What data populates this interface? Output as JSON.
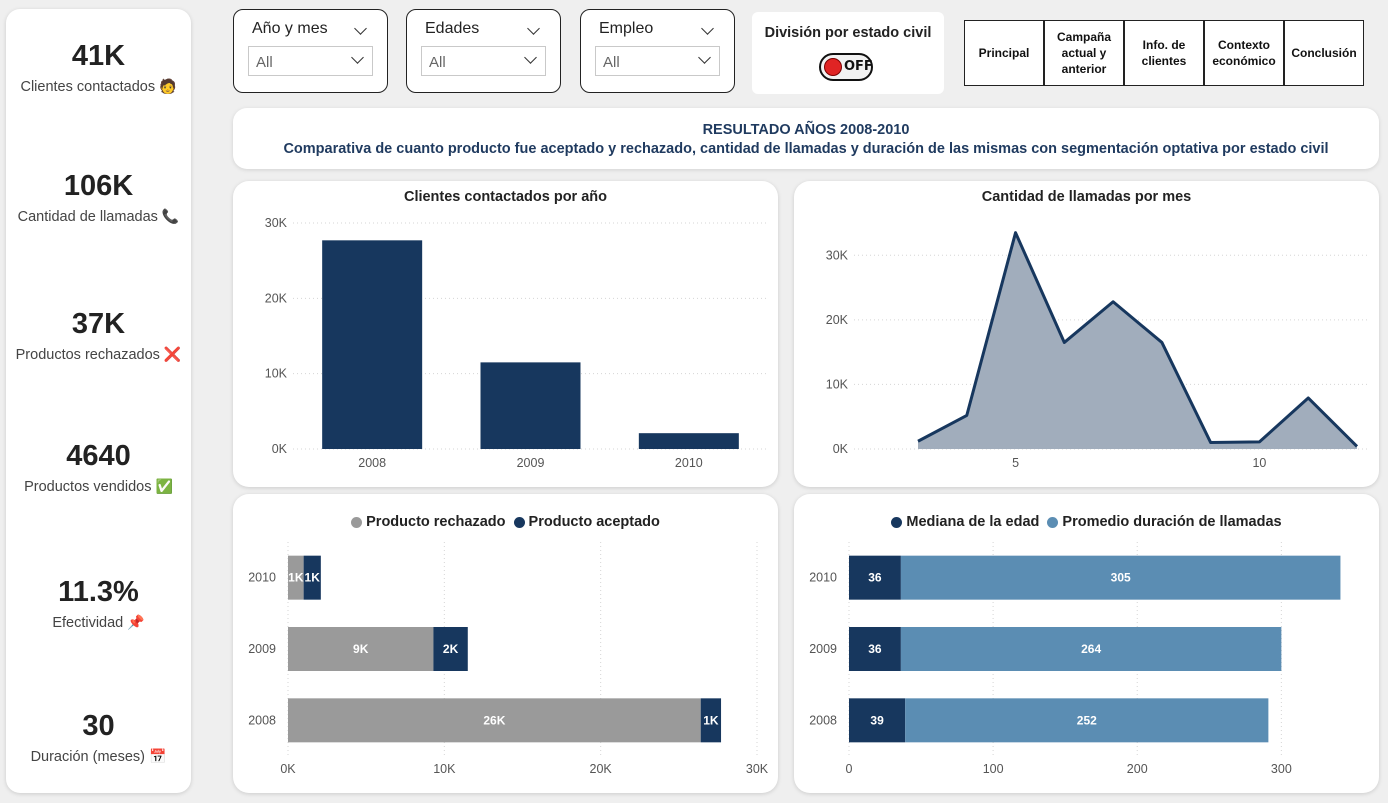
{
  "kpis": [
    {
      "value": "41K",
      "label": "Clientes contactados",
      "icon": "person-icon",
      "glyph": "🧑"
    },
    {
      "value": "106K",
      "label": "Cantidad de llamadas",
      "icon": "phone-icon",
      "glyph": "📞"
    },
    {
      "value": "37K",
      "label": "Productos rechazados",
      "icon": "cross-icon",
      "glyph": "❌"
    },
    {
      "value": "4640",
      "label": "Productos vendidos",
      "icon": "check-icon",
      "glyph": "✅"
    },
    {
      "value": "11.3%",
      "label": "Efectividad",
      "icon": "pin-icon",
      "glyph": "📌"
    },
    {
      "value": "30",
      "label": "Duración (meses)",
      "icon": "calendar-icon",
      "glyph": "📅"
    }
  ],
  "filters": [
    {
      "title": "Año y mes",
      "value": "All"
    },
    {
      "title": "Edades",
      "value": "All"
    },
    {
      "title": "Empleo",
      "value": "All"
    }
  ],
  "toggle": {
    "title": "División por estado civil",
    "state": "OFF",
    "on_color": "#e02424"
  },
  "nav": [
    "Principal",
    "Campaña actual y anterior",
    "Info. de clientes",
    "Contexto económico",
    "Conclusión"
  ],
  "banner": {
    "title": "RESULTADO AÑOS 2008-2010",
    "subtitle": "Comparativa de cuanto producto fue aceptado y rechazado, cantidad de llamadas y duración de las mismas con segmentación optativa por estado civil"
  },
  "colors": {
    "navy": "#17375e",
    "gray": "#9a9a9a",
    "steel": "#5b8db3",
    "area_fill": "#a1adbc"
  },
  "chart_data": [
    {
      "type": "bar",
      "title": "Clientes contactados por año",
      "categories": [
        "2008",
        "2009",
        "2010"
      ],
      "values": [
        27700,
        11500,
        2100
      ],
      "ylim": [
        0,
        30000
      ],
      "yticks": [
        0,
        10000,
        20000,
        30000
      ],
      "ytick_labels": [
        "0K",
        "10K",
        "20K",
        "30K"
      ]
    },
    {
      "type": "area",
      "title": "Cantidad de llamadas por mes",
      "x": [
        3,
        4,
        5,
        6,
        7,
        8,
        9,
        10,
        11,
        12
      ],
      "y": [
        1200,
        5200,
        33500,
        16500,
        22800,
        16500,
        1000,
        1100,
        7900,
        400
      ],
      "xlim": [
        3,
        12
      ],
      "ylim": [
        0,
        35000
      ],
      "xticks": [
        5,
        10
      ],
      "yticks": [
        0,
        10000,
        20000,
        30000
      ],
      "ytick_labels": [
        "0K",
        "10K",
        "20K",
        "30K"
      ]
    },
    {
      "type": "bar",
      "orientation": "horizontal",
      "stacked": true,
      "categories": [
        "2010",
        "2009",
        "2008"
      ],
      "series": [
        {
          "name": "Producto rechazado",
          "values": [
            1000,
            9300,
            26400
          ],
          "labels": [
            "1K",
            "9K",
            "26K"
          ]
        },
        {
          "name": "Producto aceptado",
          "values": [
            1100,
            2200,
            1300
          ],
          "labels": [
            "1K",
            "2K",
            "1K"
          ]
        }
      ],
      "xlim": [
        0,
        30000
      ],
      "xticks": [
        0,
        10000,
        20000,
        30000
      ],
      "xtick_labels": [
        "0K",
        "10K",
        "20K",
        "30K"
      ]
    },
    {
      "type": "bar",
      "orientation": "horizontal",
      "stacked": true,
      "categories": [
        "2010",
        "2009",
        "2008"
      ],
      "series": [
        {
          "name": "Mediana de la edad",
          "values": [
            36,
            36,
            39
          ]
        },
        {
          "name": "Promedio duración de llamadas",
          "values": [
            305,
            264,
            252
          ]
        }
      ],
      "xlim": [
        0,
        340
      ],
      "xticks": [
        0,
        100,
        200,
        300
      ]
    }
  ]
}
